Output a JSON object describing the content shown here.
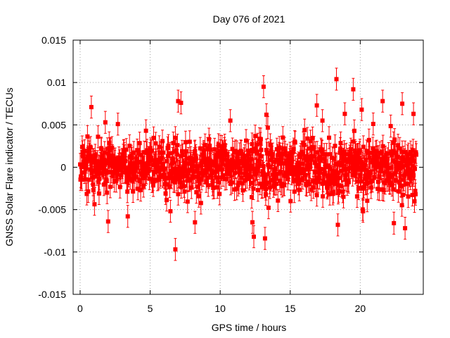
{
  "chart_data": {
    "type": "scatter",
    "title": "Day 076 of 2021",
    "xlabel": "GPS time / hours",
    "ylabel": "GNSS Solar Flare indicator / TECUs",
    "xlim": [
      -0.5,
      24.5
    ],
    "ylim": [
      -0.015,
      0.015
    ],
    "xticks": [
      0,
      5,
      10,
      15,
      20
    ],
    "yticks": [
      -0.015,
      -0.01,
      -0.005,
      0,
      0.005,
      0.01,
      0.015
    ],
    "ytick_labels": [
      "-0.015",
      "-0.01",
      "-0.005",
      "0",
      "0.005",
      "0.01",
      "0.015"
    ],
    "grid": true,
    "series": [
      {
        "color": "#ff0000",
        "marker": "square",
        "error_bars": true,
        "error_half_width": 0.0013,
        "sample_interval_hours": 0.025,
        "x_range": [
          0,
          24
        ],
        "notable_points": [
          {
            "x": 0.8,
            "y": 0.0071
          },
          {
            "x": 1.8,
            "y": 0.0053
          },
          {
            "x": 2.0,
            "y": -0.0064
          },
          {
            "x": 3.4,
            "y": -0.0058
          },
          {
            "x": 6.8,
            "y": -0.0097
          },
          {
            "x": 7.0,
            "y": 0.0078
          },
          {
            "x": 7.2,
            "y": 0.0076
          },
          {
            "x": 8.2,
            "y": -0.0065
          },
          {
            "x": 12.3,
            "y": -0.0065
          },
          {
            "x": 12.4,
            "y": -0.0082
          },
          {
            "x": 13.1,
            "y": 0.0095
          },
          {
            "x": 13.2,
            "y": -0.0084
          },
          {
            "x": 13.3,
            "y": 0.0062
          },
          {
            "x": 16.9,
            "y": 0.0073
          },
          {
            "x": 17.3,
            "y": 0.0055
          },
          {
            "x": 18.3,
            "y": 0.0104
          },
          {
            "x": 18.4,
            "y": -0.0068
          },
          {
            "x": 18.9,
            "y": 0.0063
          },
          {
            "x": 19.5,
            "y": 0.0092
          },
          {
            "x": 20.1,
            "y": 0.0068
          },
          {
            "x": 20.2,
            "y": -0.0052
          },
          {
            "x": 21.6,
            "y": 0.0078
          },
          {
            "x": 22.4,
            "y": -0.0066
          },
          {
            "x": 23.0,
            "y": 0.0075
          },
          {
            "x": 23.2,
            "y": -0.0072
          },
          {
            "x": 23.8,
            "y": 0.0063
          }
        ]
      }
    ]
  }
}
